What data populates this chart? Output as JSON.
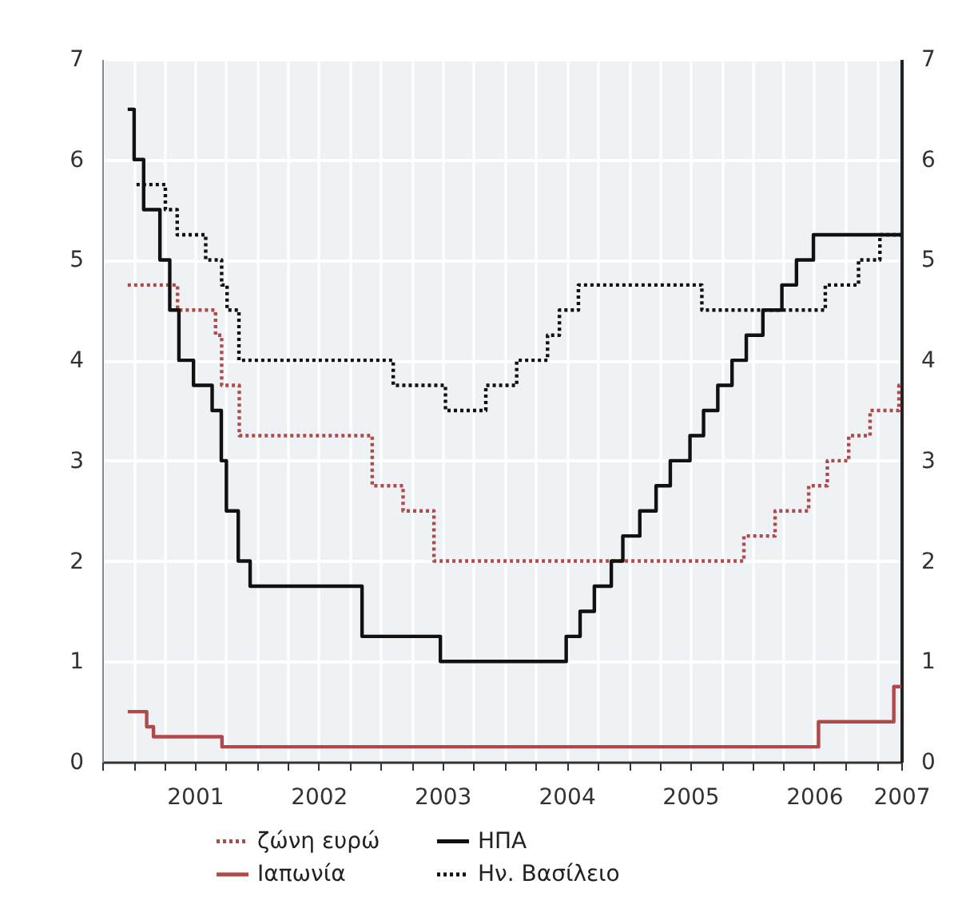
{
  "chart_data": {
    "type": "step",
    "xlim": [
      "2000-10-01",
      "2007-03-15"
    ],
    "xticks": [
      {
        "value": "2000-10-01",
        "label": null
      },
      {
        "value": "2001-01-01",
        "label": null
      },
      {
        "value": "2001-04-01",
        "label": null
      },
      {
        "value": "2001-07-01",
        "label": "2001"
      },
      {
        "value": "2001-10-01",
        "label": null
      },
      {
        "value": "2002-01-01",
        "label": null
      },
      {
        "value": "2002-04-01",
        "label": null
      },
      {
        "value": "2002-07-01",
        "label": "2002"
      },
      {
        "value": "2002-10-01",
        "label": null
      },
      {
        "value": "2003-01-01",
        "label": null
      },
      {
        "value": "2003-04-01",
        "label": null
      },
      {
        "value": "2003-07-01",
        "label": "2003"
      },
      {
        "value": "2003-10-01",
        "label": null
      },
      {
        "value": "2004-01-01",
        "label": null
      },
      {
        "value": "2004-04-01",
        "label": null
      },
      {
        "value": "2004-07-01",
        "label": "2004"
      },
      {
        "value": "2004-10-01",
        "label": null
      },
      {
        "value": "2005-01-01",
        "label": null
      },
      {
        "value": "2005-04-01",
        "label": null
      },
      {
        "value": "2005-07-01",
        "label": "2005"
      },
      {
        "value": "2005-10-01",
        "label": null
      },
      {
        "value": "2006-01-01",
        "label": null
      },
      {
        "value": "2006-04-01",
        "label": null
      },
      {
        "value": "2006-07-01",
        "label": "2006"
      },
      {
        "value": "2006-10-01",
        "label": null
      },
      {
        "value": "2007-01-01",
        "label": null
      },
      {
        "value": "2007-03-15",
        "label": "2007"
      }
    ],
    "ylim": [
      0,
      7
    ],
    "yticks": [
      0,
      1,
      2,
      3,
      4,
      5,
      6,
      7
    ],
    "y2lim": [
      0,
      7
    ],
    "y2ticks": [
      0,
      1,
      2,
      3,
      4,
      5,
      6,
      7
    ],
    "grid": true,
    "legend": "bottom",
    "series": [
      {
        "name": "ζώνη ευρώ",
        "color": "#b04a4a",
        "line_style": "dotted",
        "x": [
          "2000-12-15",
          "2001-05-11",
          "2001-08-31",
          "2001-09-18",
          "2001-11-09",
          "2002-12-06",
          "2003-03-07",
          "2003-06-06",
          "2005-12-06",
          "2006-03-08",
          "2006-06-15",
          "2006-08-09",
          "2006-10-11",
          "2006-12-13",
          "2007-03-08",
          "2007-03-15"
        ],
        "values": [
          4.75,
          4.5,
          4.25,
          3.75,
          3.25,
          2.75,
          2.5,
          2.0,
          2.25,
          2.5,
          2.75,
          3.0,
          3.25,
          3.5,
          3.75,
          3.75
        ]
      },
      {
        "name": "Ιαπωνία",
        "color": "#b04a4a",
        "line_style": "solid",
        "x": [
          "2000-12-15",
          "2001-02-09",
          "2001-03-01",
          "2001-09-19",
          "2006-07-14",
          "2007-02-21",
          "2007-03-15"
        ],
        "values": [
          0.5,
          0.35,
          0.25,
          0.15,
          0.4,
          0.75,
          0.75
        ]
      },
      {
        "name": "ΗΠΑ",
        "color": "#111111",
        "line_style": "solid",
        "x": [
          "2000-12-15",
          "2001-01-03",
          "2001-01-31",
          "2001-03-20",
          "2001-04-18",
          "2001-05-15",
          "2001-06-27",
          "2001-08-21",
          "2001-09-17",
          "2001-10-02",
          "2001-11-06",
          "2001-12-11",
          "2002-11-06",
          "2003-06-25",
          "2004-06-30",
          "2004-08-10",
          "2004-09-21",
          "2004-11-10",
          "2004-12-14",
          "2005-02-02",
          "2005-03-22",
          "2005-05-03",
          "2005-06-30",
          "2005-08-09",
          "2005-09-20",
          "2005-11-01",
          "2005-12-13",
          "2006-01-31",
          "2006-03-28",
          "2006-05-10",
          "2006-06-29",
          "2007-03-15"
        ],
        "values": [
          6.5,
          6.0,
          5.5,
          5.0,
          4.5,
          4.0,
          3.75,
          3.5,
          3.0,
          2.5,
          2.0,
          1.75,
          1.25,
          1.0,
          1.25,
          1.5,
          1.75,
          2.0,
          2.25,
          2.5,
          2.75,
          3.0,
          3.25,
          3.5,
          3.75,
          4.0,
          4.25,
          4.5,
          4.75,
          5.0,
          5.25,
          5.25
        ]
      },
      {
        "name": "Ην. Βασίλειο",
        "color": "#111111",
        "line_style": "dotted",
        "x": [
          "2001-01-10",
          "2001-04-05",
          "2001-05-10",
          "2001-08-02",
          "2001-09-18",
          "2001-10-04",
          "2001-11-08",
          "2003-02-06",
          "2003-07-10",
          "2003-11-06",
          "2004-02-05",
          "2004-05-06",
          "2004-06-10",
          "2004-08-05",
          "2005-08-04",
          "2006-08-03",
          "2006-11-09",
          "2007-01-11",
          "2007-03-15"
        ],
        "values": [
          5.75,
          5.5,
          5.25,
          5.0,
          4.75,
          4.5,
          4.0,
          3.75,
          3.5,
          3.75,
          4.0,
          4.25,
          4.5,
          4.75,
          4.5,
          4.75,
          5.0,
          5.25,
          5.25
        ]
      }
    ]
  }
}
